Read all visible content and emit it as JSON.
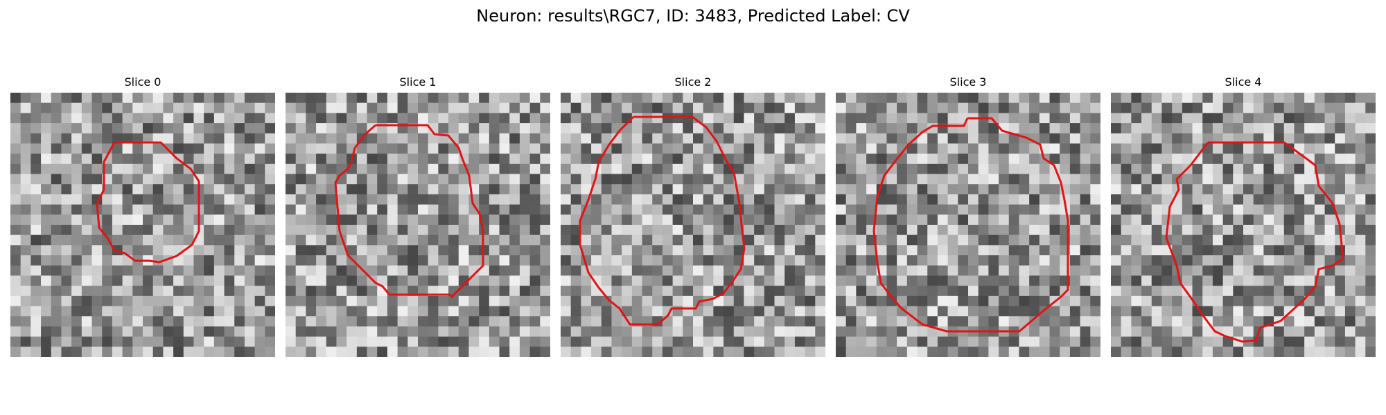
{
  "figure": {
    "title": "Neuron: results\\RGC7, ID: 3483, Predicted Label: CV",
    "contour_color": "#e01414",
    "colormap": "grayscale",
    "panels": [
      {
        "title": "Slice 0"
      },
      {
        "title": "Slice 1"
      },
      {
        "title": "Slice 2"
      },
      {
        "title": "Slice 3"
      },
      {
        "title": "Slice 4"
      }
    ]
  }
}
